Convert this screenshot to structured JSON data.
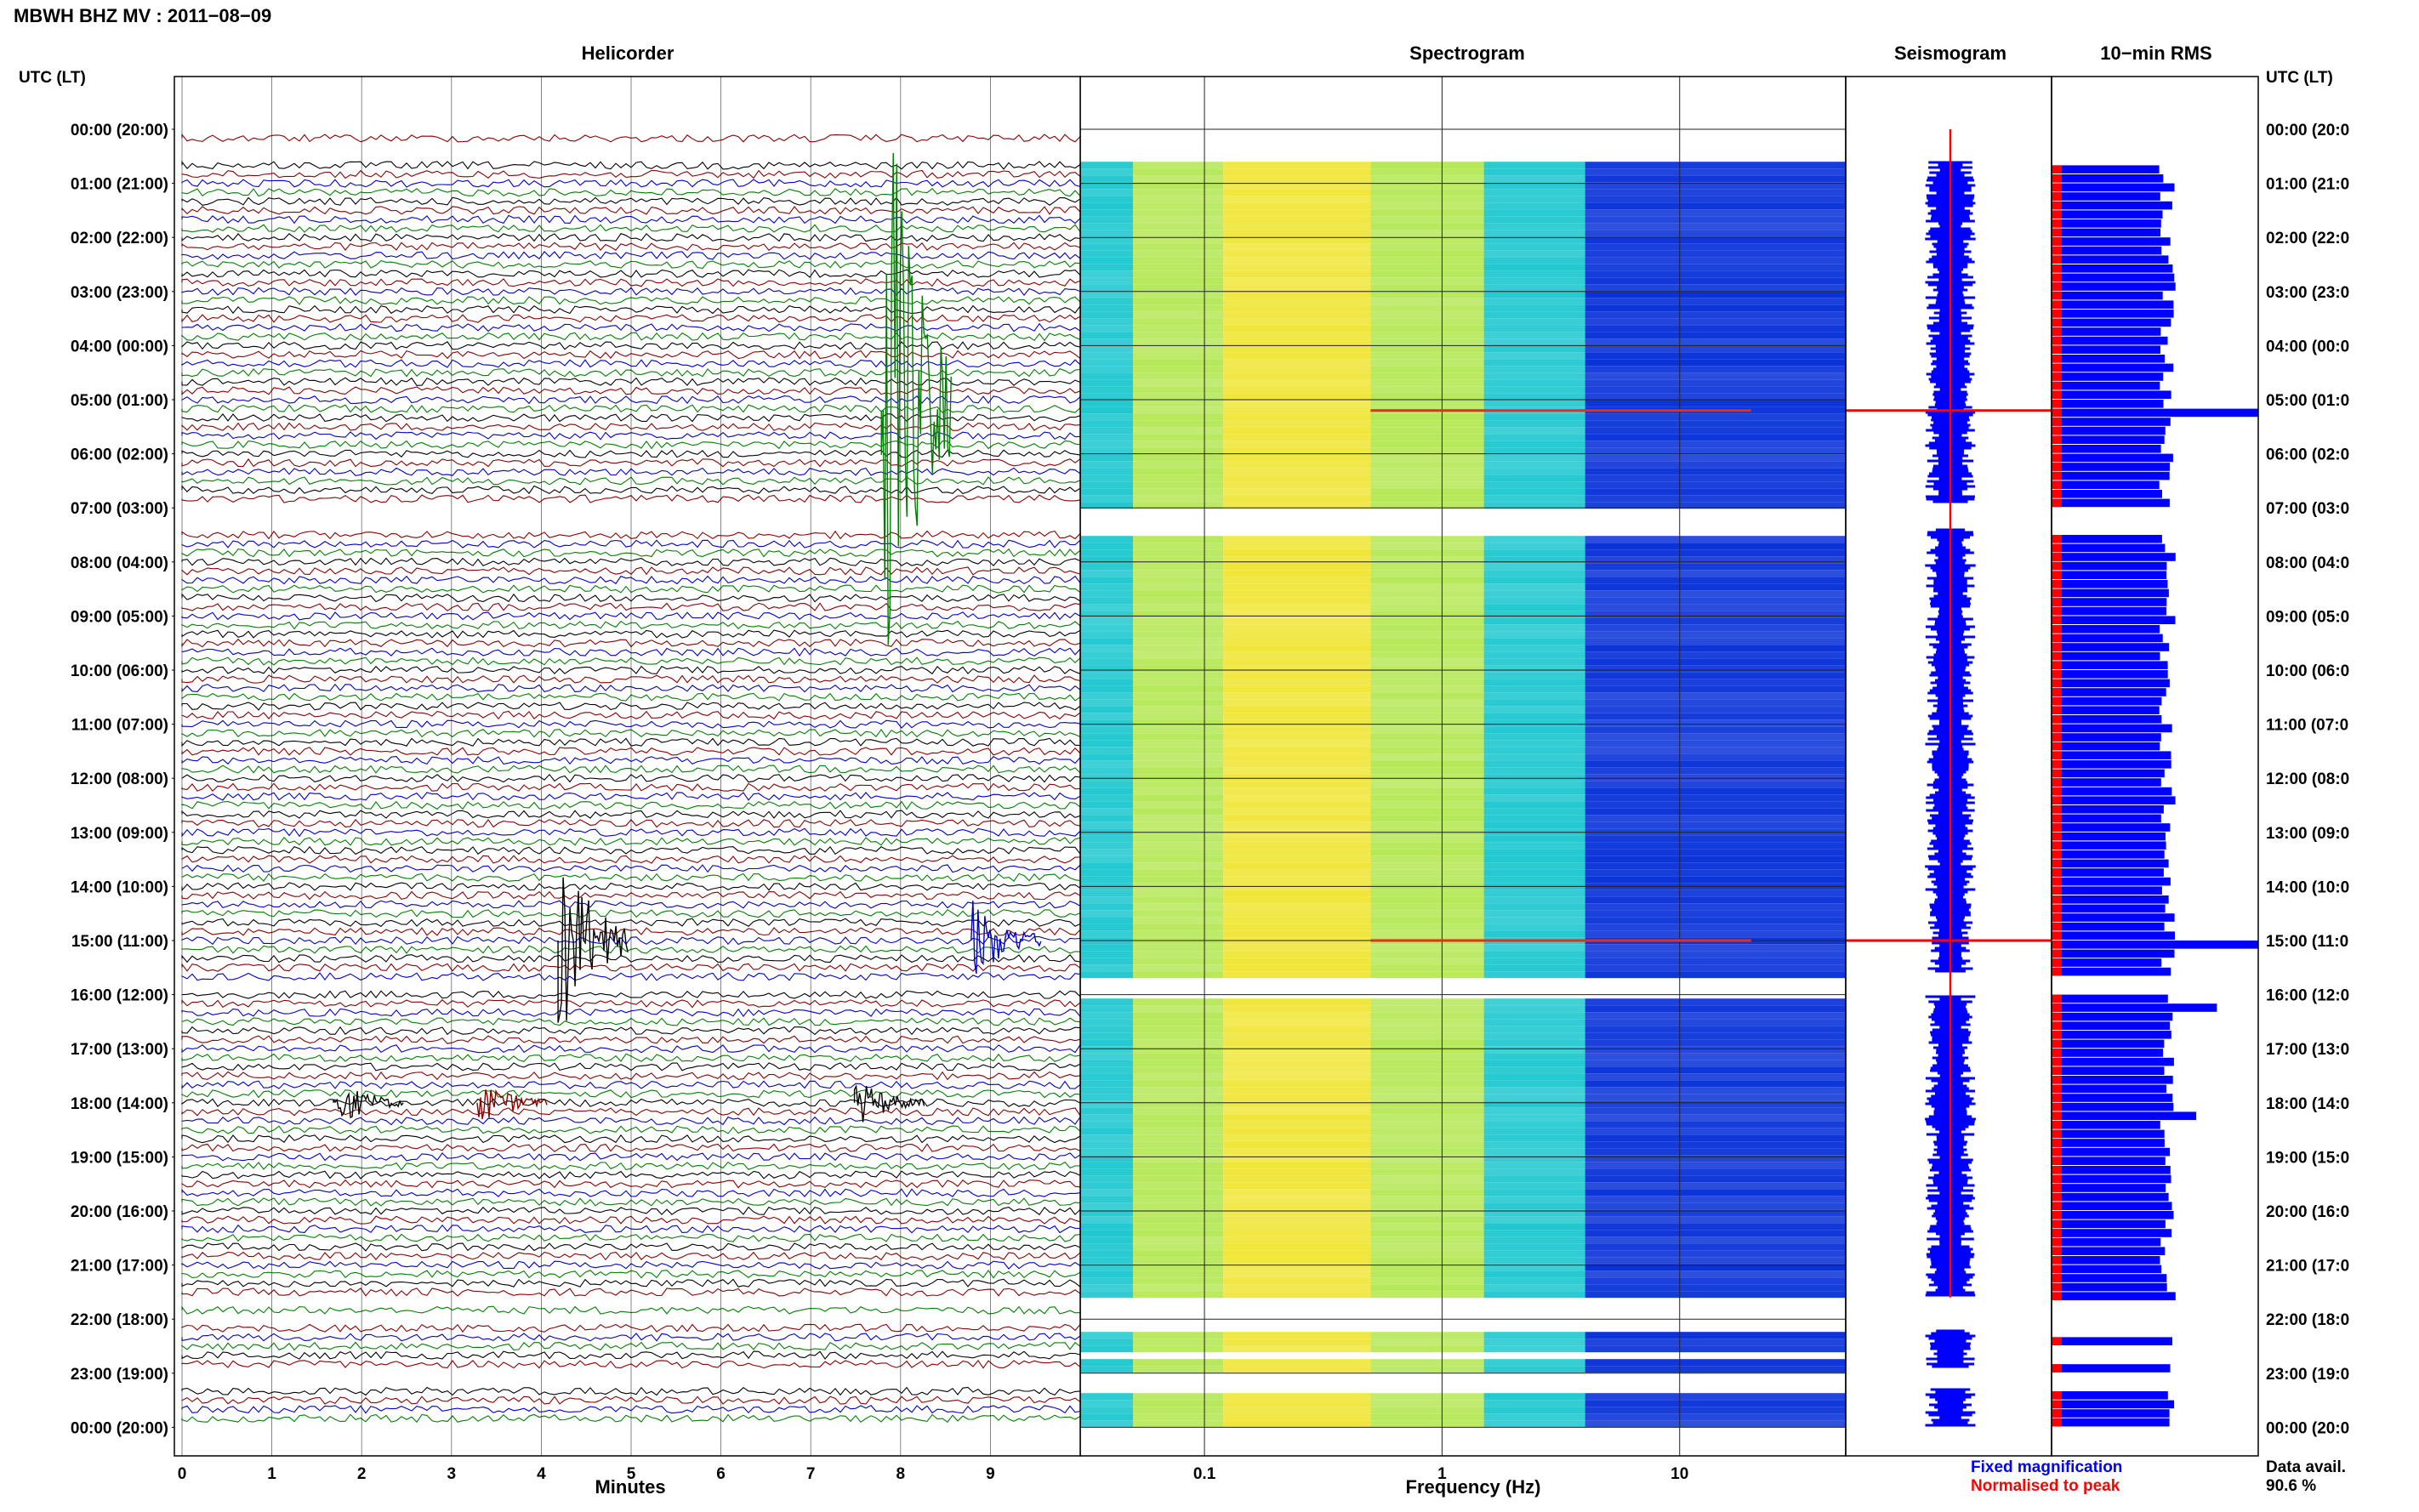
{
  "page_title": "MBWH BHZ MV : 2011−08−09",
  "colors": {
    "trace_cycle": [
      "#000000",
      "#8b0000",
      "#0000c8",
      "#008000"
    ],
    "spec_bg": "#0a32d8",
    "spec_low": "#21c8d0",
    "spec_mid": "#b7e85a",
    "spec_high": "#f0e63a",
    "rms_fixed": "#0000ff",
    "rms_peak": "#ff0000"
  },
  "chart_data": [
    {
      "type": "line",
      "title": "Helicorder",
      "xlabel": "Minutes",
      "ylabel": "UTC (LT)",
      "xlim": [
        0,
        10
      ],
      "x_ticks": [
        "0",
        "1",
        "2",
        "3",
        "4",
        "5",
        "6",
        "7",
        "8",
        "9"
      ],
      "y_ticks": [
        "00:00 (20:00)",
        "01:00 (21:00)",
        "02:00 (22:00)",
        "03:00 (23:00)",
        "04:00 (00:00)",
        "05:00 (01:00)",
        "06:00 (02:00)",
        "07:00 (03:00)",
        "08:00 (04:00)",
        "09:00 (05:00)",
        "10:00 (06:00)",
        "11:00 (07:00)",
        "12:00 (08:00)",
        "13:00 (09:00)",
        "14:00 (10:00)",
        "15:00 (11:00)",
        "16:00 (12:00)",
        "17:00 (13:00)",
        "18:00 (14:00)",
        "19:00 (15:00)",
        "20:00 (16:00)",
        "21:00 (17:00)",
        "22:00 (18:00)",
        "23:00 (19:00)",
        "00:00 (20:00)"
      ],
      "events": [
        {
          "hour": 5.2,
          "minute": 7.9,
          "amplitude": "very large"
        },
        {
          "hour": 15.0,
          "minute": 4.3,
          "amplitude": "large"
        },
        {
          "hour": 15.0,
          "minute": 8.9,
          "amplitude": "moderate"
        },
        {
          "hour": 18.0,
          "minute": 1.8,
          "amplitude": "small"
        },
        {
          "hour": 18.0,
          "minute": 3.4,
          "amplitude": "small"
        },
        {
          "hour": 18.0,
          "minute": 7.6,
          "amplitude": "small"
        }
      ]
    },
    {
      "type": "heatmap",
      "title": "Spectrogram",
      "xlabel": "Frequency (Hz)",
      "x_scale": "log",
      "xlim": [
        0.03,
        50
      ],
      "x_ticks": [
        "0.1",
        "1",
        "10"
      ],
      "data_gaps_hours": [
        [
          0,
          0.6
        ],
        [
          6.9,
          7.4
        ],
        [
          15.6,
          16.0
        ],
        [
          21.6,
          22.2
        ],
        [
          22.5,
          22.7
        ],
        [
          22.9,
          23.3
        ]
      ]
    },
    {
      "type": "line",
      "title": "Seismogram",
      "legend": [
        "Fixed magnification",
        "Normalised to peak"
      ]
    },
    {
      "type": "bar",
      "title": "10−min RMS",
      "orientation": "horizontal",
      "y_ticks": [
        "00:00 (20:0",
        "01:00 (21:0",
        "02:00 (22:0",
        "03:00 (23:0",
        "04:00 (00:0",
        "05:00 (01:0",
        "06:00 (02:0",
        "07:00 (03:0",
        "08:00 (04:0",
        "09:00 (05:0",
        "10:00 (06:0",
        "11:00 (07:0",
        "12:00 (08:0",
        "13:00 (09:0",
        "14:00 (10:0",
        "15:00 (11:0",
        "16:00 (12:0",
        "17:00 (13:0",
        "18:00 (14:0",
        "19:00 (15:0",
        "20:00 (16:0",
        "21:00 (17:0",
        "22:00 (18:0",
        "23:00 (19:0",
        "00:00 (20:0"
      ],
      "notable": [
        {
          "hour": 5.2,
          "relative": 1.0
        },
        {
          "hour": 15.0,
          "relative": 1.0
        },
        {
          "hour": 16.2,
          "relative": 0.8
        },
        {
          "hour": 18.2,
          "relative": 0.7
        }
      ]
    }
  ],
  "data_availability": {
    "label": "Data avail.",
    "value": "90.6 %"
  }
}
